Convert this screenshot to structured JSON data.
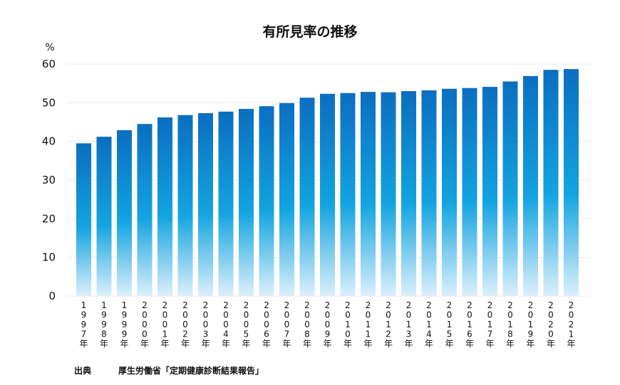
{
  "chart_data": {
    "type": "bar",
    "title": "有所見率の推移",
    "ylabel": "%",
    "xlabel": "",
    "ylim": [
      0,
      60
    ],
    "yticks": [
      0,
      10,
      20,
      30,
      40,
      50,
      60
    ],
    "grid": true,
    "categories": [
      "1997年",
      "1998年",
      "1999年",
      "2000年",
      "2001年",
      "2002年",
      "2003年",
      "2004年",
      "2005年",
      "2006年",
      "2007年",
      "2008年",
      "2009年",
      "2010年",
      "2011年",
      "2012年",
      "2013年",
      "2014年",
      "2015年",
      "2016年",
      "2017年",
      "2018年",
      "2019年",
      "2020年",
      "2021年"
    ],
    "values": [
      39.5,
      41.2,
      42.9,
      44.5,
      46.2,
      46.8,
      47.3,
      47.7,
      48.4,
      49.1,
      49.9,
      51.3,
      52.3,
      52.5,
      52.8,
      52.7,
      53.0,
      53.2,
      53.6,
      53.8,
      54.1,
      55.5,
      56.9,
      58.5,
      58.7
    ],
    "bar_gradient": [
      "#0b6ec0",
      "#13a4e0",
      "#dcf0fb"
    ]
  },
  "source": {
    "label": "出典",
    "text": "厚生労働省「定期健康診断結果報告」"
  }
}
